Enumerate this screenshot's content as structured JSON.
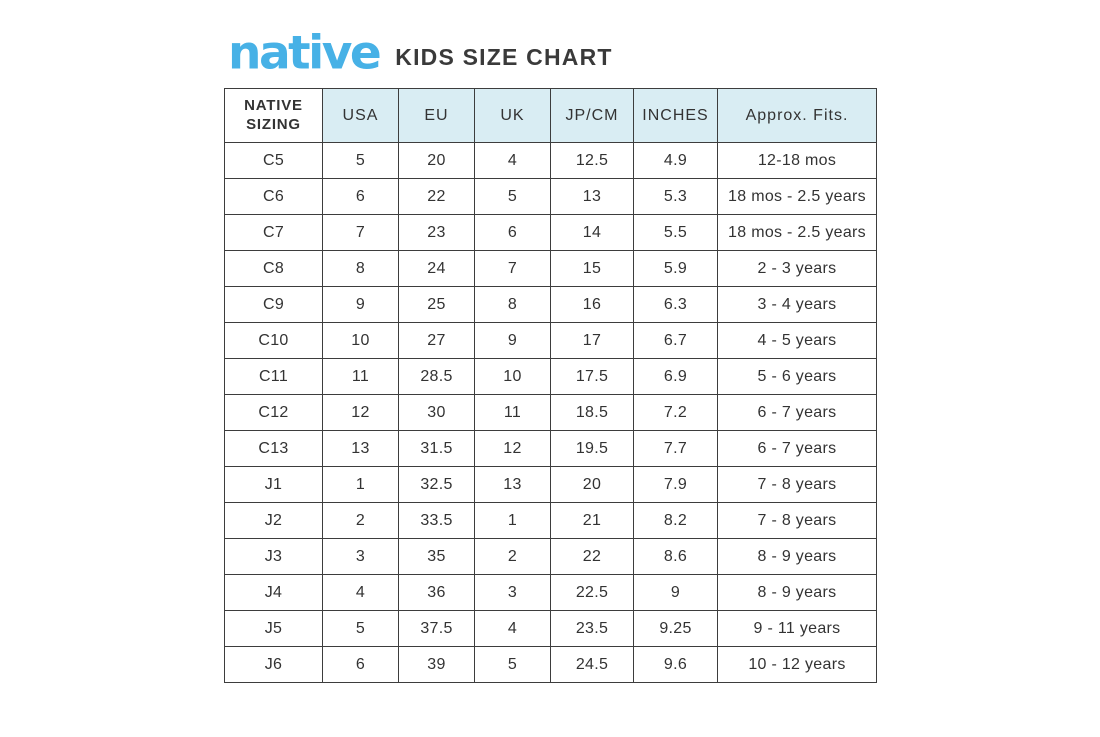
{
  "logo": {
    "text": "native",
    "color": "#47b1e6"
  },
  "title": "KIDS SIZE CHART",
  "colors": {
    "logo_blue": "#47b1e6",
    "header_background": "#d9edf3",
    "border": "#3d3d3d",
    "text": "#333333"
  },
  "chart_data": {
    "type": "table",
    "title": "KIDS SIZE CHART",
    "columns": [
      "NATIVE SIZING",
      "USA",
      "EU",
      "UK",
      "JP/CM",
      "INCHES",
      "Approx. Fits."
    ],
    "rows": [
      [
        "C5",
        "5",
        "20",
        "4",
        "12.5",
        "4.9",
        "12-18 mos"
      ],
      [
        "C6",
        "6",
        "22",
        "5",
        "13",
        "5.3",
        "18 mos - 2.5 years"
      ],
      [
        "C7",
        "7",
        "23",
        "6",
        "14",
        "5.5",
        "18 mos - 2.5 years"
      ],
      [
        "C8",
        "8",
        "24",
        "7",
        "15",
        "5.9",
        "2 - 3 years"
      ],
      [
        "C9",
        "9",
        "25",
        "8",
        "16",
        "6.3",
        "3 - 4 years"
      ],
      [
        "C10",
        "10",
        "27",
        "9",
        "17",
        "6.7",
        "4 - 5 years"
      ],
      [
        "C11",
        "11",
        "28.5",
        "10",
        "17.5",
        "6.9",
        "5 - 6 years"
      ],
      [
        "C12",
        "12",
        "30",
        "11",
        "18.5",
        "7.2",
        "6 - 7 years"
      ],
      [
        "C13",
        "13",
        "31.5",
        "12",
        "19.5",
        "7.7",
        "6 - 7 years"
      ],
      [
        "J1",
        "1",
        "32.5",
        "13",
        "20",
        "7.9",
        "7 - 8 years"
      ],
      [
        "J2",
        "2",
        "33.5",
        "1",
        "21",
        "8.2",
        "7 - 8 years"
      ],
      [
        "J3",
        "3",
        "35",
        "2",
        "22",
        "8.6",
        "8 - 9 years"
      ],
      [
        "J4",
        "4",
        "36",
        "3",
        "22.5",
        "9",
        "8 - 9 years"
      ],
      [
        "J5",
        "5",
        "37.5",
        "4",
        "23.5",
        "9.25",
        "9 - 11 years"
      ],
      [
        "J6",
        "6",
        "39",
        "5",
        "24.5",
        "9.6",
        "10 - 12 years"
      ]
    ]
  }
}
